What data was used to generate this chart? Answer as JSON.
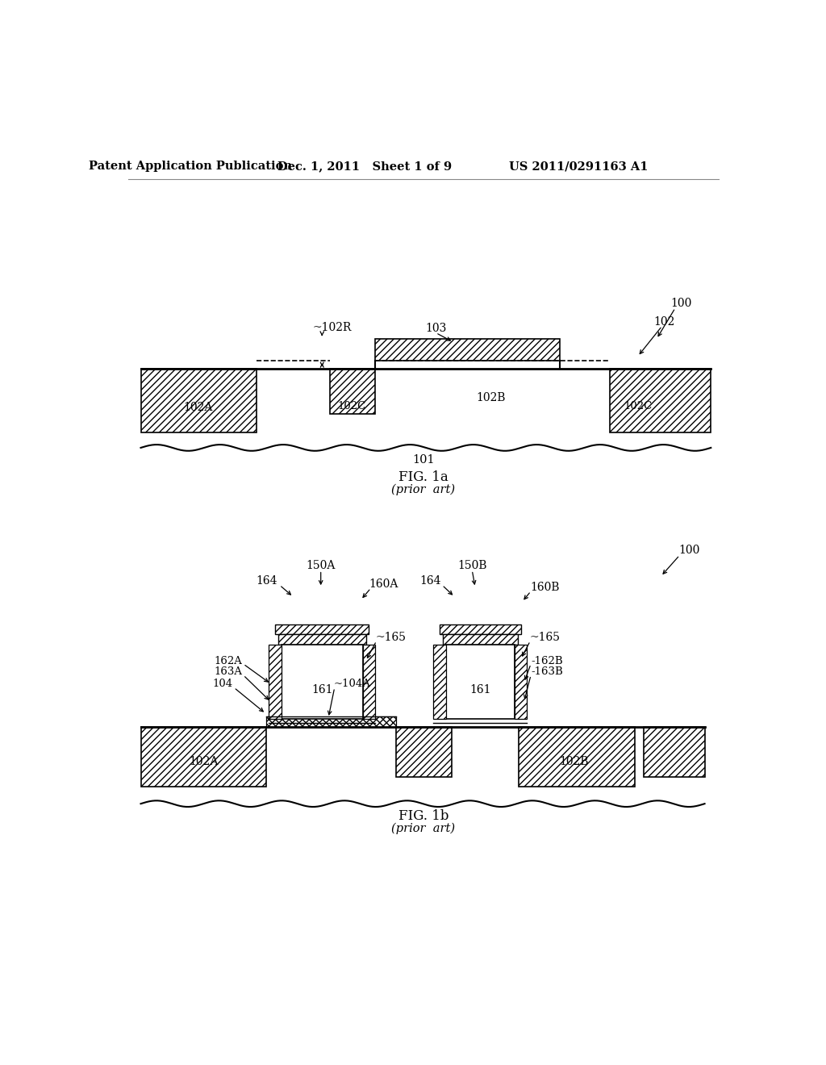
{
  "bg_color": "#ffffff",
  "header_left": "Patent Application Publication",
  "header_mid": "Dec. 1, 2011   Sheet 1 of 9",
  "header_right": "US 2011/0291163 A1",
  "fig1a_label": "FIG. 1a",
  "fig1a_sub": "(prior  art)",
  "fig1b_label": "FIG. 1b",
  "fig1b_sub": "(prior  art)"
}
